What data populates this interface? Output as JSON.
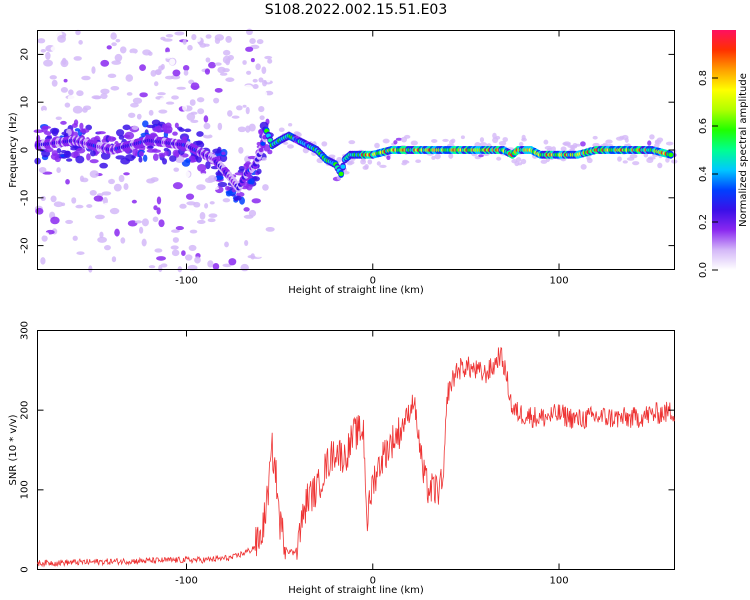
{
  "title": "S108.2022.002.15.51.E03",
  "chart_data": [
    {
      "type": "heatmap",
      "xlabel": "Height of straight line (km)",
      "ylabel": "Frequency (Hz)",
      "xlim": [
        -180,
        162
      ],
      "ylim": [
        -25,
        25
      ],
      "x_ticks": [
        -100,
        0,
        100
      ],
      "y_ticks": [
        -20,
        -10,
        0,
        10,
        20
      ],
      "ridge": {
        "x": [
          -180,
          -160,
          -140,
          -120,
          -100,
          -85,
          -78,
          -72,
          -68,
          -63,
          -60,
          -57,
          -54,
          -50,
          -45,
          -40,
          -35,
          -30,
          -25,
          -20,
          -17,
          -15,
          -12,
          -8,
          -4,
          0,
          10,
          20,
          30,
          40,
          50,
          60,
          70,
          75,
          78,
          85,
          90,
          95,
          100,
          110,
          120,
          130,
          140,
          150,
          160
        ],
        "y": [
          1,
          2,
          0,
          2,
          1,
          -2,
          -5,
          -8,
          -5,
          -3,
          0,
          4,
          1,
          2,
          3,
          2,
          1,
          0,
          -2,
          -3,
          -5,
          -2,
          -1,
          -1,
          -1,
          -1,
          0,
          0,
          0,
          0,
          0,
          0,
          0,
          -1,
          0,
          0,
          -1,
          -1,
          -1,
          -1,
          0,
          0,
          0,
          0,
          -1
        ]
      },
      "colorbar": {
        "label": "Normalized spectral amplitude",
        "range": [
          0,
          1
        ],
        "ticks": [
          "0.0",
          "0.2",
          "0.4",
          "0.6",
          "0.8"
        ],
        "colors": [
          "#ffffff",
          "#d4b8f8",
          "#8a28f0",
          "#3a10e8",
          "#0040ff",
          "#00c8ff",
          "#00ff90",
          "#20ff00",
          "#b0ff00",
          "#ffff00",
          "#ffa000",
          "#ff3000",
          "#ff1060"
        ]
      }
    },
    {
      "type": "line",
      "xlabel": "Height of straight line (km)",
      "ylabel": "SNR (10 * v/v)",
      "xlim": [
        -180,
        162
      ],
      "ylim": [
        0,
        300
      ],
      "x_ticks": [
        -100,
        0,
        100
      ],
      "y_ticks": [
        0,
        100,
        200,
        300
      ],
      "color": "#ee3333",
      "x": [
        -180,
        -160,
        -140,
        -120,
        -100,
        -90,
        -80,
        -75,
        -70,
        -65,
        -60,
        -57,
        -54,
        -52,
        -50,
        -46,
        -42,
        -38,
        -35,
        -30,
        -25,
        -20,
        -15,
        -10,
        -5,
        -3,
        0,
        5,
        10,
        15,
        20,
        22,
        25,
        27,
        30,
        35,
        38,
        40,
        45,
        50,
        55,
        60,
        65,
        68,
        70,
        72,
        75,
        80,
        90,
        100,
        110,
        120,
        130,
        140,
        150,
        160
      ],
      "y": [
        8,
        9,
        10,
        11,
        12,
        12,
        14,
        15,
        20,
        25,
        40,
        80,
        150,
        120,
        60,
        25,
        20,
        60,
        90,
        100,
        130,
        150,
        140,
        170,
        175,
        60,
        110,
        140,
        160,
        175,
        200,
        215,
        160,
        120,
        100,
        100,
        108,
        220,
        250,
        255,
        250,
        245,
        255,
        270,
        260,
        240,
        200,
        195,
        190,
        195,
        188,
        192,
        190,
        190,
        195,
        198
      ]
    }
  ]
}
